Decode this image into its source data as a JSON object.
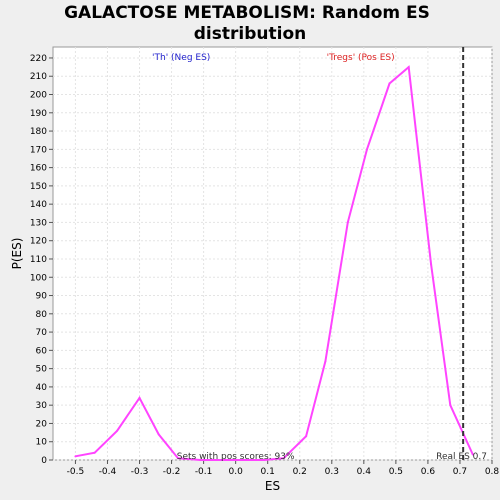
{
  "chart_data": {
    "type": "line",
    "title_line1": "GALACTOSE METABOLISM: Random ES",
    "title_line2": "distribution",
    "xlabel": "ES",
    "ylabel": "P(ES)",
    "xlim": [
      -0.57,
      0.8
    ],
    "ylim": [
      0,
      226
    ],
    "xticks": [
      -0.5,
      -0.4,
      -0.3,
      -0.2,
      -0.1,
      0.0,
      0.1,
      0.2,
      0.3,
      0.4,
      0.5,
      0.6,
      0.7,
      0.8
    ],
    "xtick_labels": [
      "-0.5",
      "-0.4",
      "-0.3",
      "-0.2",
      "-0.1",
      "0.0",
      "0.1",
      "0.2",
      "0.3",
      "0.4",
      "0.5",
      "0.6",
      "0.7",
      "0.8"
    ],
    "yticks": [
      0,
      10,
      20,
      30,
      40,
      50,
      60,
      70,
      80,
      90,
      100,
      110,
      120,
      130,
      140,
      150,
      160,
      170,
      180,
      190,
      200,
      210,
      220
    ],
    "ytick_labels": [
      "0",
      "10",
      "20",
      "30",
      "40",
      "50",
      "60",
      "70",
      "80",
      "90",
      "100",
      "110",
      "120",
      "130",
      "140",
      "150",
      "160",
      "170",
      "180",
      "190",
      "200",
      "210",
      "220"
    ],
    "grid": true,
    "series": [
      {
        "color": "#ff44ff",
        "x": [
          -0.5,
          -0.44,
          -0.37,
          -0.3,
          -0.24,
          -0.18,
          -0.11,
          -0.05,
          0.02,
          0.09,
          0.15,
          0.22,
          0.28,
          0.35,
          0.41,
          0.48,
          0.54,
          0.61,
          0.67,
          0.74
        ],
        "y": [
          2,
          4,
          16,
          34,
          14,
          1,
          0,
          0,
          0,
          0,
          1,
          13,
          54,
          130,
          170,
          206,
          215,
          107,
          30,
          3
        ]
      }
    ],
    "real_es": {
      "x": 0.71,
      "label": "Real ES 0.7",
      "color": "#333333"
    },
    "annotations": {
      "neg_label": "'Th' (Neg ES)",
      "pos_label": "'Tregs' (Pos ES)",
      "neg_color": "#2222cc",
      "pos_color": "#dd2222"
    },
    "footer": "Sets with pos scores: 93%"
  }
}
